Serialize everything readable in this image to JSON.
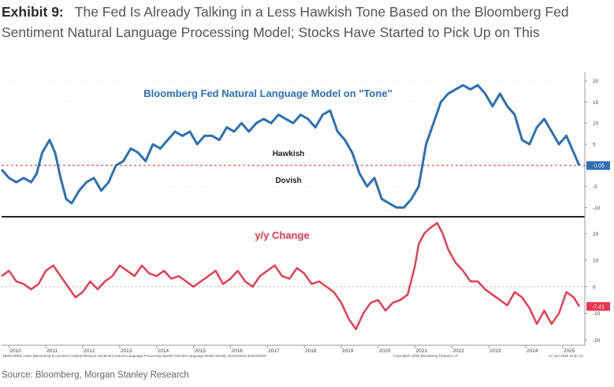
{
  "header": {
    "label": "Exhibit 9:",
    "title": "The Fed Is Already Talking in a Less Hawkish Tone Based on the Bloomberg Fed Sentiment Natural Language Processing Model; Stocks Have Started to Pick Up on This"
  },
  "source": "Source: Bloomberg, Morgan Stanley Research",
  "footnote_left": "BENLFRED Index (Bloomberg Economics Federal Reserve Sentiment Natural Language Processing Model) Fed Net Language Model  Weekly 29JAN2010-30JUN2025",
  "footnote_mid": "Copyright© 2025 Bloomberg Finance L.P.",
  "footnote_right": "27-Jun-2025 15:57:12",
  "colors": {
    "top_line": "#2e6fb3",
    "bottom_line": "#e8384f",
    "ref": "#d9534f",
    "grid": "#cccccc"
  },
  "chart_data": [
    {
      "type": "line",
      "title": "Bloomberg Fed Natural Language Model on \"Tone\"",
      "annotations": [
        "Hawkish",
        "Dovish"
      ],
      "last_value_label": "-0.05",
      "reference_line": 0,
      "ylim": [
        -12,
        22
      ],
      "yticks": [
        -10,
        -5,
        0,
        5,
        10,
        15,
        20
      ],
      "ytick_labels": [
        "-10",
        "-5",
        "0",
        "5",
        "10",
        "15",
        "20"
      ],
      "xlim": [
        2009.8,
        2025.6
      ],
      "xticks": [
        2010,
        2011,
        2012,
        2013,
        2014,
        2015,
        2016,
        2017,
        2018,
        2019,
        2020,
        2021,
        2022,
        2023,
        2024,
        2025
      ],
      "xtick_labels": [
        "2010",
        "2011",
        "2012",
        "2013",
        "2014",
        "2015",
        "2016",
        "2017",
        "2018",
        "2019",
        "2020",
        "2021",
        "2022",
        "2023",
        "2024",
        "2025"
      ],
      "series": [
        {
          "name": "Tone",
          "x": [
            2009.8,
            2010.0,
            2010.2,
            2010.4,
            2010.6,
            2010.75,
            2010.9,
            2011.1,
            2011.25,
            2011.4,
            2011.55,
            2011.7,
            2011.9,
            2012.1,
            2012.3,
            2012.5,
            2012.7,
            2012.9,
            2013.1,
            2013.3,
            2013.5,
            2013.7,
            2013.9,
            2014.1,
            2014.3,
            2014.5,
            2014.7,
            2014.9,
            2015.1,
            2015.3,
            2015.5,
            2015.7,
            2015.9,
            2016.1,
            2016.3,
            2016.5,
            2016.7,
            2016.9,
            2017.1,
            2017.3,
            2017.5,
            2017.7,
            2017.9,
            2018.1,
            2018.3,
            2018.5,
            2018.7,
            2018.9,
            2019.1,
            2019.3,
            2019.5,
            2019.7,
            2019.9,
            2020.1,
            2020.3,
            2020.5,
            2020.7,
            2020.9,
            2021.1,
            2021.3,
            2021.5,
            2021.7,
            2021.9,
            2022.1,
            2022.3,
            2022.5,
            2022.7,
            2022.9,
            2023.1,
            2023.3,
            2023.5,
            2023.7,
            2023.9,
            2024.1,
            2024.3,
            2024.5,
            2024.7,
            2024.9,
            2025.1,
            2025.3,
            2025.45
          ],
          "values": [
            -1,
            -3,
            -4,
            -3,
            -4,
            -2,
            3,
            6,
            3,
            -3,
            -8,
            -9,
            -6,
            -4,
            -3,
            -6,
            -4,
            0,
            1,
            4,
            3,
            1,
            5,
            4,
            6,
            8,
            7,
            8,
            5,
            7,
            7,
            6,
            9,
            8,
            10,
            8,
            10,
            11,
            10,
            12,
            11,
            10,
            12,
            11,
            9,
            12,
            13,
            8,
            6,
            3,
            -2,
            -5,
            -3,
            -8,
            -9,
            -10,
            -10,
            -8,
            -5,
            5,
            10,
            15,
            17,
            18,
            19,
            18,
            19,
            17,
            14,
            17,
            14,
            12,
            6,
            5,
            9,
            11,
            8,
            5,
            7,
            3,
            -0.05
          ]
        }
      ]
    },
    {
      "type": "line",
      "title": "y/y Change",
      "last_value_label": "-7.41",
      "reference_line": 0,
      "ylim": [
        -22,
        26
      ],
      "yticks": [
        -20,
        -10,
        0,
        10,
        20
      ],
      "ytick_labels": [
        "-20",
        "-10",
        "0",
        "10",
        "20"
      ],
      "xlim": [
        2009.8,
        2025.6
      ],
      "series": [
        {
          "name": "y/y Change",
          "x": [
            2009.8,
            2010.0,
            2010.2,
            2010.4,
            2010.6,
            2010.8,
            2011.0,
            2011.2,
            2011.4,
            2011.6,
            2011.8,
            2012.0,
            2012.2,
            2012.4,
            2012.6,
            2012.8,
            2013.0,
            2013.2,
            2013.4,
            2013.6,
            2013.8,
            2014.0,
            2014.2,
            2014.4,
            2014.6,
            2014.8,
            2015.0,
            2015.2,
            2015.4,
            2015.6,
            2015.8,
            2016.0,
            2016.2,
            2016.4,
            2016.6,
            2016.8,
            2017.0,
            2017.2,
            2017.4,
            2017.6,
            2017.8,
            2018.0,
            2018.2,
            2018.4,
            2018.6,
            2018.8,
            2019.0,
            2019.2,
            2019.4,
            2019.6,
            2019.8,
            2020.0,
            2020.2,
            2020.4,
            2020.6,
            2020.8,
            2021.0,
            2021.1,
            2021.25,
            2021.4,
            2021.6,
            2021.75,
            2021.9,
            2022.1,
            2022.3,
            2022.5,
            2022.7,
            2022.9,
            2023.1,
            2023.3,
            2023.5,
            2023.7,
            2023.9,
            2024.1,
            2024.3,
            2024.5,
            2024.7,
            2024.9,
            2025.1,
            2025.3,
            2025.45
          ],
          "values": [
            4,
            6,
            2,
            1,
            -1,
            1,
            6,
            8,
            4,
            0,
            -4,
            -2,
            2,
            -1,
            2,
            4,
            8,
            6,
            4,
            8,
            5,
            4,
            6,
            3,
            4,
            2,
            0,
            2,
            4,
            6,
            1,
            3,
            6,
            2,
            0,
            4,
            6,
            8,
            4,
            3,
            7,
            5,
            1,
            2,
            0,
            -2,
            -6,
            -12,
            -16,
            -10,
            -6,
            -5,
            -9,
            -6,
            -5,
            -3,
            8,
            16,
            20,
            22,
            24,
            20,
            14,
            9,
            6,
            2,
            2,
            -1,
            -3,
            -5,
            -7,
            -2,
            -4,
            -8,
            -14,
            -9,
            -14,
            -10,
            -2,
            -4,
            -7.41
          ]
        }
      ]
    }
  ]
}
